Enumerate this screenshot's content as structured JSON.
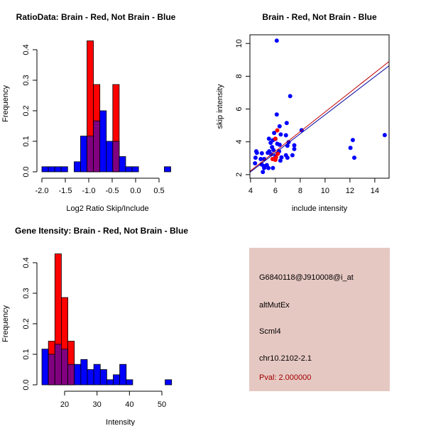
{
  "chart_data": [
    {
      "type": "bar",
      "title": "RatioData: Brain - Red, Not Brain - Blue",
      "xlabel": "Log2 Ratio Skip/Include",
      "ylabel": "Frequency",
      "xlim": [
        -2.0,
        0.75
      ],
      "ylim": [
        0,
        0.43
      ],
      "xticks": [
        "-2.0",
        "-1.5",
        "-1.0",
        "-0.5",
        "0.0",
        "0.5"
      ],
      "yticks": [
        "0.0",
        "0.1",
        "0.2",
        "0.3",
        "0.4"
      ],
      "bin_start": -2.0,
      "bin_width": 0.1375,
      "series": [
        {
          "name": "Not Brain",
          "color": "#0000ff",
          "values": [
            0.0167,
            0.0167,
            0.0167,
            0.0167,
            0,
            0.033,
            0.117,
            0.117,
            0.167,
            0.2,
            0.1,
            0.1,
            0.05,
            0.0167,
            0.0167,
            0,
            0,
            0,
            0,
            0.0167
          ]
        },
        {
          "name": "Brain",
          "color": "#ff0000",
          "values": [
            0,
            0,
            0,
            0,
            0,
            0,
            0,
            0.429,
            0.286,
            0,
            0,
            0.286,
            0,
            0,
            0,
            0,
            0,
            0,
            0,
            0
          ]
        }
      ]
    },
    {
      "type": "scatter",
      "title": "Brain - Red, Not Brain - Blue",
      "xlabel": "include intensity",
      "ylabel": "skip intensity",
      "xlim": [
        3.95,
        15.15
      ],
      "ylim": [
        1.78,
        10.53
      ],
      "xticks": [
        "4",
        "6",
        "8",
        "10",
        "12",
        "14"
      ],
      "yticks": [
        "2",
        "4",
        "6",
        "8",
        "10"
      ],
      "series": [
        {
          "name": "Not Brain",
          "color": "#0000ff",
          "points": [
            [
              6.11,
              10.17
            ],
            [
              7.19,
              6.79
            ],
            [
              6.11,
              5.67
            ],
            [
              6.91,
              5.15
            ],
            [
              6.34,
              4.95
            ],
            [
              8.11,
              4.71
            ],
            [
              5.9,
              4.54
            ],
            [
              6.85,
              4.4
            ],
            [
              6.43,
              4.45
            ],
            [
              5.48,
              4.19
            ],
            [
              6.0,
              4.17
            ],
            [
              5.8,
              4.1
            ],
            [
              5.62,
              3.94
            ],
            [
              6.15,
              3.88
            ],
            [
              6.34,
              3.82
            ],
            [
              7.06,
              3.98
            ],
            [
              7.52,
              3.79
            ],
            [
              6.97,
              3.76
            ],
            [
              4.46,
              3.42
            ],
            [
              4.51,
              3.33
            ],
            [
              5.5,
              3.42
            ],
            [
              5.73,
              3.68
            ],
            [
              5.84,
              3.5
            ],
            [
              6.3,
              3.42
            ],
            [
              7.52,
              3.56
            ],
            [
              4.91,
              3.3
            ],
            [
              5.39,
              3.33
            ],
            [
              5.67,
              3.24
            ],
            [
              6.85,
              3.18
            ],
            [
              7.37,
              3.18
            ],
            [
              4.4,
              3.03
            ],
            [
              6.49,
              3.05
            ],
            [
              6.97,
              3.03
            ],
            [
              6.4,
              2.85
            ],
            [
              4.82,
              2.95
            ],
            [
              5.1,
              2.95
            ],
            [
              4.36,
              2.69
            ],
            [
              4.89,
              2.62
            ],
            [
              5.06,
              2.52
            ],
            [
              5.31,
              2.58
            ],
            [
              5.44,
              2.4
            ],
            [
              5.8,
              2.4
            ],
            [
              4.99,
              2.16
            ],
            [
              5.1,
              2.4
            ],
            [
              6.0,
              3.13
            ],
            [
              12.04,
              3.63
            ],
            [
              12.23,
              4.11
            ],
            [
              12.35,
              3.03
            ],
            [
              14.8,
              4.41
            ]
          ],
          "fit": [
            [
              3.95,
              2.14
            ],
            [
              15.15,
              8.64
            ]
          ]
        },
        {
          "name": "Brain",
          "color": "#ff0000",
          "points": [
            [
              6.15,
              4.7
            ],
            [
              6.0,
              4.19
            ],
            [
              5.77,
              2.95
            ],
            [
              6.0,
              2.9
            ],
            [
              6.19,
              3.27
            ],
            [
              6.05,
              3.05
            ]
          ],
          "fit": [
            [
              3.95,
              2.2
            ],
            [
              15.15,
              8.9
            ]
          ]
        }
      ]
    },
    {
      "type": "bar",
      "title": "Gene Itensity: Brain - Red, Not Brain - Blue",
      "xlabel": "Intensity",
      "ylabel": "Frequency",
      "xlim": [
        13,
        53
      ],
      "ylim": [
        0,
        0.43
      ],
      "xticks": [
        "20",
        "30",
        "40",
        "50"
      ],
      "yticks": [
        "0.0",
        "0.1",
        "0.2",
        "0.3",
        "0.4"
      ],
      "bin_start": 13,
      "bin_width": 2,
      "series": [
        {
          "name": "Not Brain",
          "color": "#0000ff",
          "values": [
            0.117,
            0.1,
            0.133,
            0.117,
            0.067,
            0.067,
            0.083,
            0.05,
            0.067,
            0.05,
            0.0167,
            0.033,
            0.067,
            0.0167,
            0,
            0,
            0,
            0,
            0,
            0.0167
          ]
        },
        {
          "name": "Brain",
          "color": "#ff0000",
          "values": [
            0,
            0.143,
            0.429,
            0.286,
            0.143,
            0,
            0,
            0,
            0,
            0,
            0,
            0,
            0,
            0,
            0,
            0,
            0,
            0,
            0,
            0
          ]
        }
      ]
    }
  ],
  "info": {
    "probe": "G6840118@J910008@i_at",
    "event": "altMutEx",
    "gene": "Scml4",
    "location": "chr10.2102-2.1",
    "pval": "Pval: 2.000000"
  },
  "colors": {
    "overlap": "#800080",
    "panel": "#e6c8c2"
  }
}
